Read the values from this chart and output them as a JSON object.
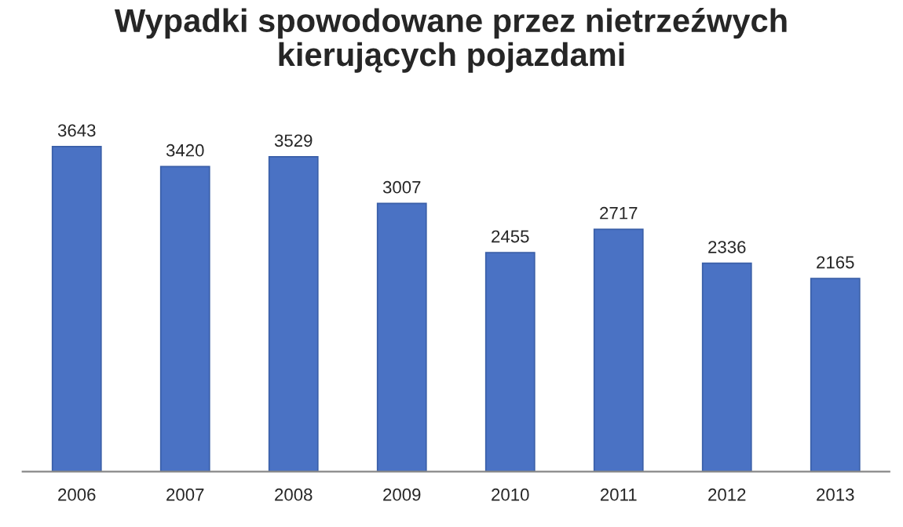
{
  "chart_data": {
    "type": "bar",
    "title": "Wypadki spowodowane przez nietrzeźwych\nkierujących pojazdami",
    "categories": [
      "2006",
      "2007",
      "2008",
      "2009",
      "2010",
      "2011",
      "2012",
      "2013"
    ],
    "values": [
      3643,
      3420,
      3529,
      3007,
      2455,
      2717,
      2336,
      2165
    ],
    "color": "#4a72c4",
    "data_labels": true,
    "grid": false,
    "legend": false
  }
}
